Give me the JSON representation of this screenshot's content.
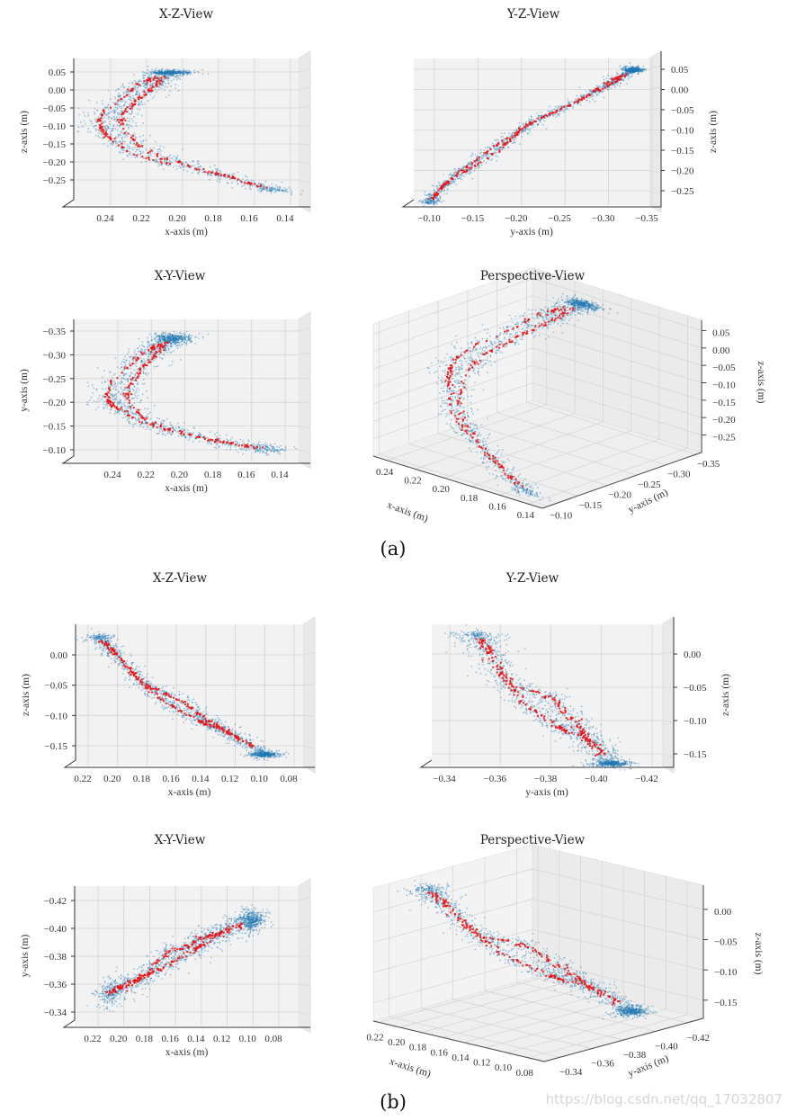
{
  "captions": {
    "a": "(a)",
    "b": "(b)"
  },
  "watermark": "https://blog.csdn.net/qq_17032807",
  "colors": {
    "cloud": "#1f77b4",
    "trajectory": "#ee1111",
    "pane": "#f2f2f2",
    "grid": "#d2d2d2"
  },
  "chart_data": [
    {
      "group": "a",
      "type": "scatter",
      "series": [
        {
          "name": "point cloud",
          "color": "#1f77b4"
        },
        {
          "name": "trajectory",
          "color": "#ee1111"
        }
      ],
      "trajectory": {
        "strands": [
          [
            [
              0.145,
              -0.1,
              -0.28
            ],
            [
              0.18,
              -0.12,
              -0.23
            ],
            [
              0.22,
              -0.155,
              -0.185
            ],
            [
              0.238,
              -0.19,
              -0.13
            ],
            [
              0.243,
              -0.215,
              -0.085
            ],
            [
              0.235,
              -0.26,
              -0.04
            ],
            [
              0.222,
              -0.3,
              0.01
            ],
            [
              0.205,
              -0.335,
              0.05
            ]
          ],
          [
            [
              0.145,
              -0.1,
              -0.28
            ],
            [
              0.18,
              -0.12,
              -0.23
            ],
            [
              0.212,
              -0.15,
              -0.18
            ],
            [
              0.228,
              -0.19,
              -0.12
            ],
            [
              0.23,
              -0.23,
              -0.07
            ],
            [
              0.222,
              -0.27,
              -0.03
            ],
            [
              0.212,
              -0.31,
              0.015
            ],
            [
              0.205,
              -0.335,
              0.05
            ]
          ]
        ],
        "end_blob": [
          0.203,
          -0.335,
          0.048
        ]
      },
      "panels": [
        {
          "id": "aXZ",
          "title": "X-Z-View",
          "xlabel": "x-axis (m)",
          "ylabel": "z-axis (m)",
          "xticks": [
            "0.24",
            "0.22",
            "0.20",
            "0.18",
            "0.16",
            "0.14"
          ],
          "yticks": [
            "0.05",
            "0.00",
            "−0.05",
            "−0.10",
            "−0.15",
            "−0.20",
            "−0.25"
          ]
        },
        {
          "id": "aYZ",
          "title": "Y-Z-View",
          "xlabel": "y-axis (m)",
          "ylabel": "z-axis (m)",
          "xticks": [
            "−0.10",
            "−0.15",
            "−0.20",
            "−0.25",
            "−0.30",
            "−0.35"
          ],
          "yticks": [
            "0.05",
            "0.00",
            "−0.05",
            "−0.10",
            "−0.15",
            "−0.20",
            "−0.25"
          ]
        },
        {
          "id": "aXY",
          "title": "X-Y-View",
          "xlabel": "x-axis (m)",
          "ylabel": "y-axis (m)",
          "xticks": [
            "0.24",
            "0.22",
            "0.20",
            "0.18",
            "0.16",
            "0.14"
          ],
          "yticks": [
            "−0.35",
            "−0.30",
            "−0.25",
            "−0.20",
            "−0.15",
            "−0.10"
          ]
        },
        {
          "id": "aP",
          "title": "Perspective-View",
          "xlabel": "x-axis (m)",
          "ylabel": "y-axis (m)",
          "zlabel": "z-axis (m)",
          "xticks": [
            "0.24",
            "0.22",
            "0.20",
            "0.18",
            "0.16",
            "0.14"
          ],
          "yticks": [
            "−0.10",
            "−0.15",
            "−0.20",
            "−0.25",
            "−0.30",
            "−0.35"
          ],
          "zticks": [
            "0.05",
            "0.00",
            "−0.05",
            "−0.10",
            "−0.15",
            "−0.20",
            "−0.25"
          ],
          "xlim": [
            0.13,
            0.25
          ],
          "ylim": [
            -0.09,
            -0.36
          ],
          "zlim": [
            -0.3,
            0.08
          ]
        }
      ]
    },
    {
      "group": "b",
      "type": "scatter",
      "series": [
        {
          "name": "point cloud",
          "color": "#1f77b4"
        },
        {
          "name": "trajectory",
          "color": "#ee1111"
        }
      ],
      "trajectory": {
        "strands": [
          [
            [
              0.21,
              -0.352,
              0.03
            ],
            [
              0.197,
              -0.358,
              0.0
            ],
            [
              0.18,
              -0.366,
              -0.045
            ],
            [
              0.165,
              -0.38,
              -0.062
            ],
            [
              0.15,
              -0.386,
              -0.082
            ],
            [
              0.135,
              -0.393,
              -0.108
            ],
            [
              0.12,
              -0.397,
              -0.13
            ],
            [
              0.095,
              -0.406,
              -0.165
            ]
          ],
          [
            [
              0.21,
              -0.352,
              0.03
            ],
            [
              0.197,
              -0.358,
              0.0
            ],
            [
              0.18,
              -0.366,
              -0.045
            ],
            [
              0.165,
              -0.372,
              -0.075
            ],
            [
              0.15,
              -0.38,
              -0.098
            ],
            [
              0.135,
              -0.388,
              -0.115
            ],
            [
              0.12,
              -0.397,
              -0.13
            ],
            [
              0.095,
              -0.406,
              -0.165
            ]
          ]
        ],
        "end_blob": [
          0.097,
          -0.406,
          -0.165
        ]
      },
      "panels": [
        {
          "id": "bXZ",
          "title": "X-Z-View",
          "xlabel": "x-axis (m)",
          "ylabel": "z-axis (m)",
          "xticks": [
            "0.22",
            "0.20",
            "0.18",
            "0.16",
            "0.14",
            "0.12",
            "0.10",
            "0.08"
          ],
          "yticks": [
            "0.00",
            "−0.05",
            "−0.10",
            "−0.15"
          ]
        },
        {
          "id": "bYZ",
          "title": "Y-Z-View",
          "xlabel": "y-axis (m)",
          "ylabel": "z-axis (m)",
          "xticks": [
            "−0.34",
            "−0.36",
            "−0.38",
            "−0.40",
            "−0.42"
          ],
          "yticks": [
            "0.00",
            "−0.05",
            "−0.10",
            "−0.15"
          ]
        },
        {
          "id": "bXY",
          "title": "X-Y-View",
          "xlabel": "x-axis (m)",
          "ylabel": "y-axis (m)",
          "xticks": [
            "0.22",
            "0.20",
            "0.18",
            "0.16",
            "0.14",
            "0.12",
            "0.10",
            "0.08"
          ],
          "yticks": [
            "−0.42",
            "−0.40",
            "−0.38",
            "−0.36",
            "−0.34"
          ]
        },
        {
          "id": "bP",
          "title": "Perspective-View",
          "xlabel": "x-axis (m)",
          "ylabel": "y-axis (m)",
          "zlabel": "z-axis (m)",
          "xticks": [
            "0.22",
            "0.20",
            "0.18",
            "0.16",
            "0.14",
            "0.12",
            "0.10",
            "0.08"
          ],
          "yticks": [
            "−0.34",
            "−0.36",
            "−0.38",
            "−0.40",
            "−0.42"
          ],
          "zticks": [
            "0.00",
            "−0.05",
            "−0.10",
            "−0.15"
          ],
          "xlim": [
            0.065,
            0.225
          ],
          "ylim": [
            -0.33,
            -0.43
          ],
          "zlim": [
            -0.18,
            0.04
          ]
        }
      ]
    }
  ]
}
